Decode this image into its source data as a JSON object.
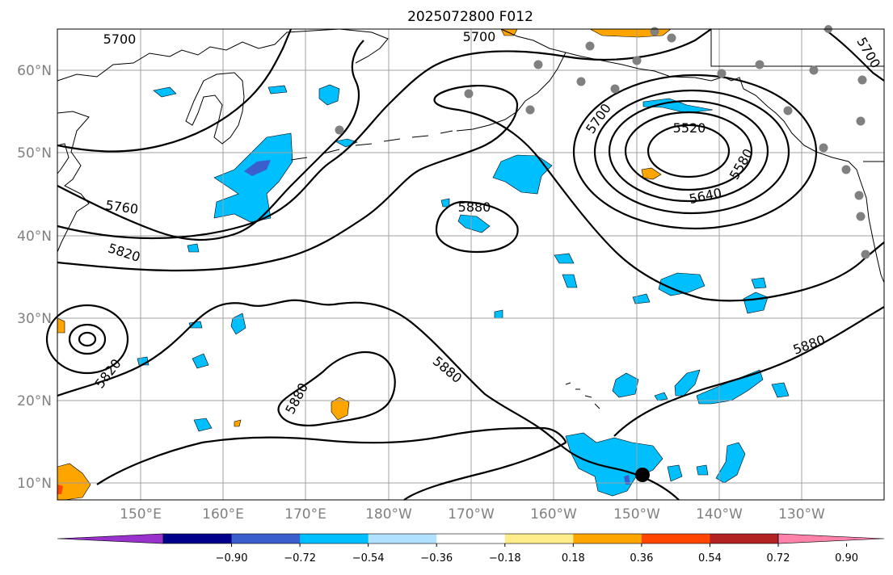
{
  "title": "2025072800 F012",
  "lat_labels": [
    "60°N",
    "50°N",
    "40°N",
    "30°N",
    "20°N",
    "10°N"
  ],
  "lon_labels": [
    "150°E",
    "160°E",
    "170°E",
    "180°W",
    "170°W",
    "160°W",
    "150°W",
    "140°W",
    "130°W"
  ],
  "contour_labels": [
    "5700",
    "5700",
    "5700",
    "5700",
    "5520",
    "5580",
    "5640",
    "5760",
    "5820",
    "5880",
    "5880",
    "5880",
    "5820",
    "5880"
  ],
  "colorbar": {
    "ticks": [
      "−0.90",
      "−0.72",
      "−0.54",
      "−0.36",
      "−0.18",
      "0.18",
      "0.36",
      "0.54",
      "0.72",
      "0.90"
    ],
    "colors": [
      "#9932cc",
      "#00008b",
      "#3a5fcd",
      "#00bfff",
      "#b0e2ff",
      "#ffffff",
      "#ffec8b",
      "#ffa500",
      "#ff4500",
      "#b22222",
      "#ff82ab"
    ]
  },
  "colors": {
    "negative_fill": "#00bfff",
    "strong_negative_fill": "#3a5fcd",
    "positive_fill": "#ffa500",
    "station_dot": "#808080",
    "storm_marker": "#000000"
  }
}
